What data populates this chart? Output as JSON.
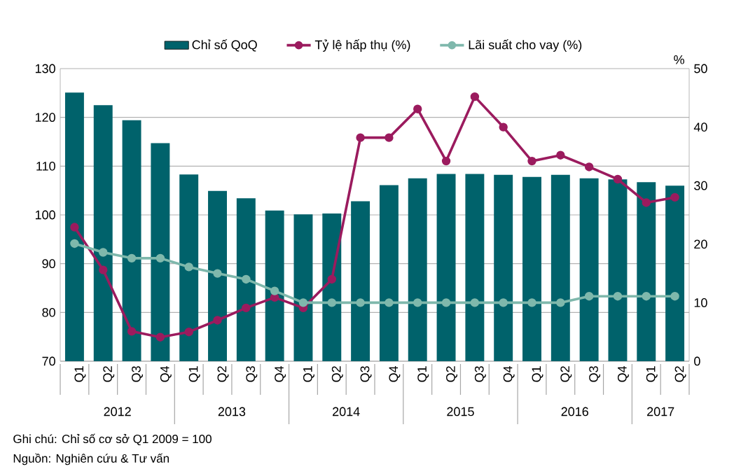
{
  "chart_data": {
    "type": "bar",
    "categories": [
      "Q1",
      "Q2",
      "Q3",
      "Q4",
      "Q1",
      "Q2",
      "Q3",
      "Q4",
      "Q1",
      "Q2",
      "Q3",
      "Q4",
      "Q1",
      "Q2",
      "Q3",
      "Q4",
      "Q1",
      "Q2",
      "Q3",
      "Q4",
      "Q1",
      "Q2"
    ],
    "series": [
      {
        "name": "Chỉ số QoQ",
        "color": "#00626b",
        "values": [
          125.1,
          122.5,
          119.4,
          114.7,
          108.3,
          104.9,
          103.4,
          100.9,
          100.1,
          100.3,
          102.8,
          106.1,
          107.5,
          108.4,
          108.4,
          108.2,
          107.8,
          108.2,
          107.5,
          107.3,
          106.7,
          106.0
        ]
      },
      {
        "name": "Tỷ lệ hấp thụ (%)",
        "type": "line",
        "axis": "y2",
        "color": "#9b1b5e",
        "values": [
          22.9,
          15.6,
          5.1,
          4.1,
          5.0,
          7.0,
          9.1,
          10.9,
          9.1,
          14.0,
          38.2,
          38.2,
          43.1,
          34.2,
          45.2,
          40.0,
          34.2,
          35.2,
          33.2,
          31.1,
          27.1,
          28.0
        ]
      },
      {
        "name": "Lãi suất cho vay (%)",
        "type": "line",
        "axis": "y2",
        "color": "#7fb8ac",
        "values": [
          20.1,
          18.6,
          17.6,
          17.6,
          16.1,
          15.0,
          14.0,
          12.0,
          10.0,
          10.0,
          10.0,
          10.0,
          10.0,
          10.0,
          10.0,
          10.0,
          10.0,
          10.0,
          11.1,
          11.1,
          11.1,
          11.1
        ]
      }
    ],
    "ylim": [
      70,
      130
    ],
    "yticks": [
      70,
      80,
      90,
      100,
      110,
      120,
      130
    ],
    "y2lim": [
      0,
      50
    ],
    "y2ticks": [
      0,
      10,
      20,
      30,
      40,
      50
    ],
    "y2label": "%",
    "grid": "y",
    "legend": "top",
    "marker": "circle",
    "line_style": "solid",
    "annotations": [
      "2012",
      "2013",
      "2014",
      "2015",
      "2016",
      "2017",
      "Ghi chú: Chỉ số cơ sở  Q1 2009 = 100",
      "Nguồn: Nghiên cứu & Tư vấn"
    ]
  }
}
